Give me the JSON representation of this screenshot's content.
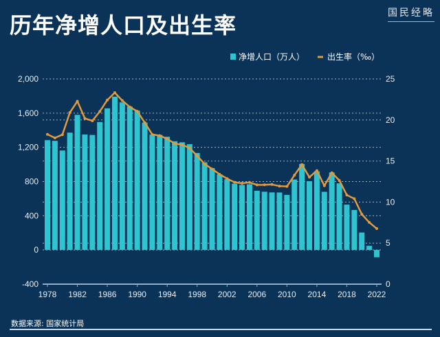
{
  "title": "历年净增人口及出生率",
  "logo": "国民经略",
  "source": "数据来源: 国家统计局",
  "colors": {
    "background": "#0b3358",
    "bar": "#2ec4d0",
    "line": "#e39a3c",
    "grid": "#9db4c8"
  },
  "chart_data": {
    "type": "bar+line",
    "title": "历年净增人口及出生率",
    "legend_position": "top-right",
    "grid": true,
    "x": [
      1978,
      1979,
      1980,
      1981,
      1982,
      1983,
      1984,
      1985,
      1986,
      1987,
      1988,
      1989,
      1990,
      1991,
      1992,
      1993,
      1994,
      1995,
      1996,
      1997,
      1998,
      1999,
      2000,
      2001,
      2002,
      2003,
      2004,
      2005,
      2006,
      2007,
      2008,
      2009,
      2010,
      2011,
      2012,
      2013,
      2014,
      2015,
      2016,
      2017,
      2018,
      2019,
      2020,
      2021,
      2022
    ],
    "x_tick_labels": [
      "1978",
      "1982",
      "1986",
      "1990",
      "1994",
      "1998",
      "2002",
      "2006",
      "2010",
      "2014",
      "2018",
      "2022"
    ],
    "y_left": {
      "range": [
        -400,
        2000
      ],
      "tick_labels": [
        "2,000",
        "1,600",
        "1,200",
        "800",
        "400",
        "0",
        "-400"
      ]
    },
    "y_right": {
      "range": [
        0,
        25
      ],
      "tick_labels": [
        "25",
        "20",
        "15",
        "10",
        "5",
        "0"
      ]
    },
    "series": [
      {
        "name": "净增人口（万人）",
        "type": "bar",
        "axis": "left",
        "values": [
          1284,
          1276,
          1163,
          1372,
          1580,
          1350,
          1345,
          1496,
          1656,
          1793,
          1726,
          1678,
          1629,
          1490,
          1348,
          1346,
          1324,
          1271,
          1259,
          1237,
          1134,
          1025,
          957,
          884,
          826,
          774,
          761,
          768,
          692,
          681,
          673,
          672,
          644,
          824,
          1006,
          804,
          920,
          680,
          906,
          779,
          530,
          467,
          204,
          48,
          -85
        ]
      },
      {
        "name": "出生率（‰）",
        "type": "line",
        "axis": "right",
        "values": [
          18.25,
          17.82,
          18.21,
          20.91,
          22.28,
          20.19,
          19.9,
          21.04,
          22.43,
          23.33,
          22.37,
          21.58,
          21.06,
          19.68,
          18.24,
          18.09,
          17.7,
          17.12,
          16.98,
          16.57,
          15.64,
          14.64,
          14.03,
          13.38,
          12.86,
          12.41,
          12.29,
          12.4,
          12.09,
          12.1,
          12.14,
          11.95,
          11.9,
          13.27,
          14.57,
          13.03,
          13.83,
          11.99,
          13.57,
          12.64,
          10.86,
          10.41,
          8.52,
          7.52,
          6.77
        ]
      }
    ]
  }
}
